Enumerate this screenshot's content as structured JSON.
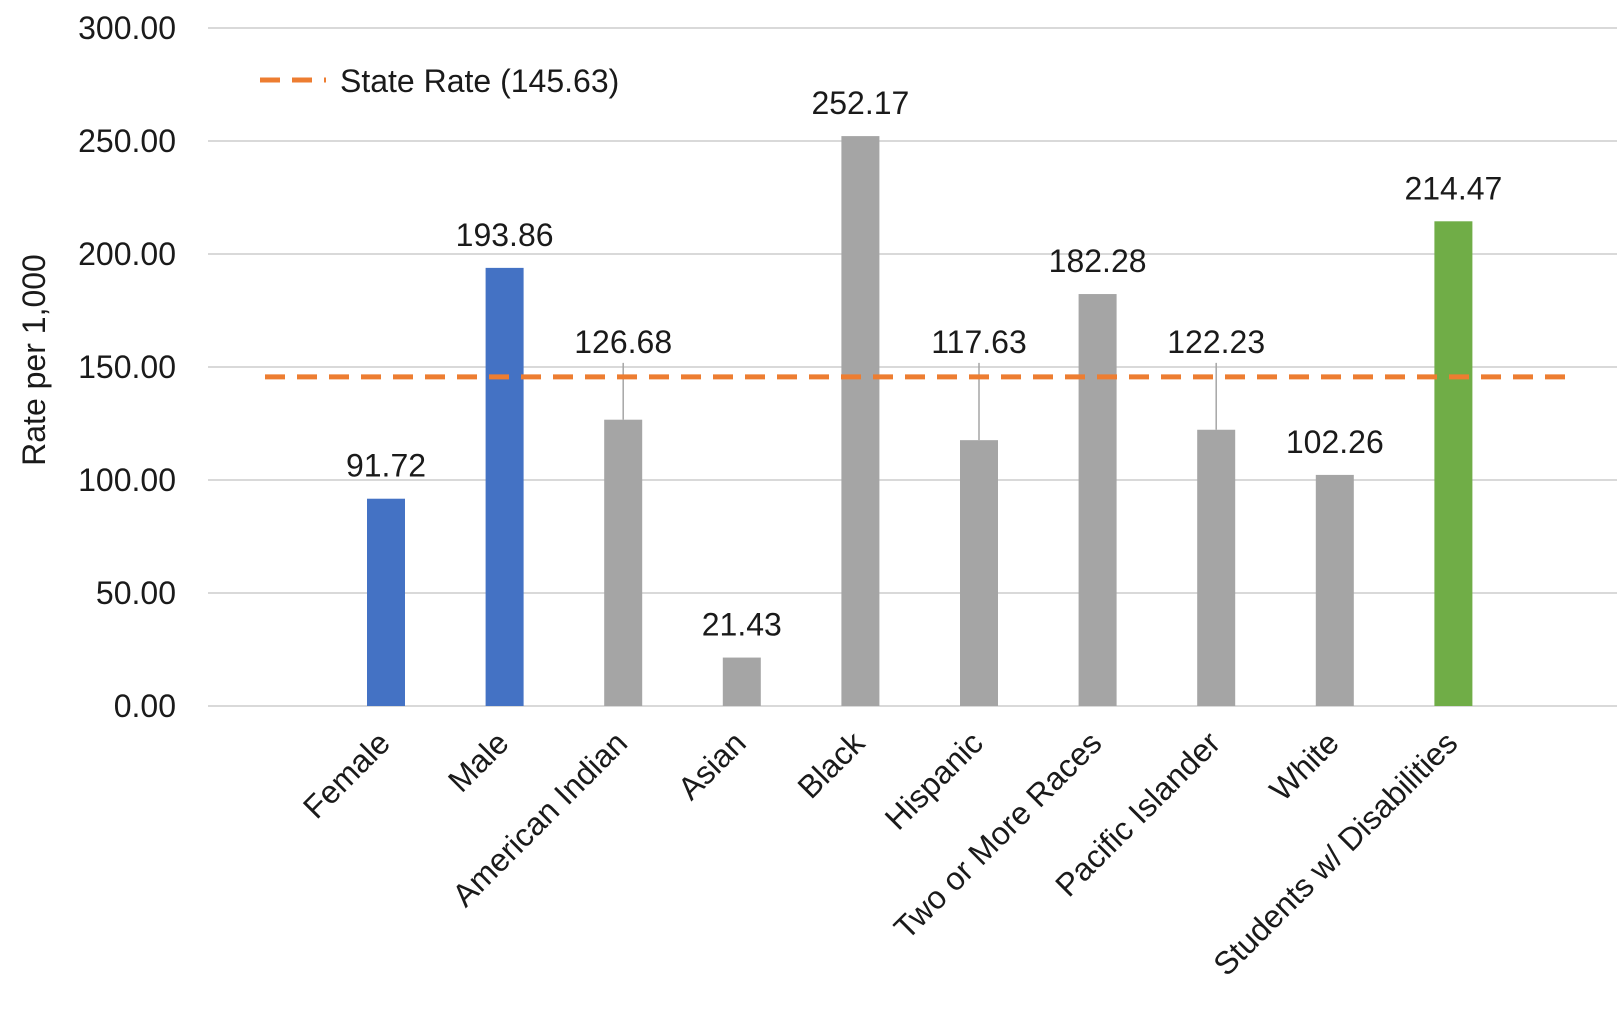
{
  "chart_data": {
    "type": "bar",
    "title": "",
    "xlabel": "",
    "ylabel": "Rate per 1,000",
    "ylim": [
      0,
      300
    ],
    "y_ticks": [
      "0.00",
      "50.00",
      "100.00",
      "150.00",
      "200.00",
      "250.00",
      "300.00"
    ],
    "grid": true,
    "legend_position": "top-left",
    "categories": [
      "Female",
      "Male",
      "American Indian",
      "Asian",
      "Black",
      "Hispanic",
      "Two or More Races",
      "Pacific Islander",
      "White",
      "Students w/ Disabilities"
    ],
    "values": [
      91.72,
      193.86,
      126.68,
      21.43,
      252.17,
      117.63,
      182.28,
      122.23,
      102.26,
      214.47
    ],
    "value_labels": [
      "91.72",
      "193.86",
      "126.68",
      "21.43",
      "252.17",
      "117.63",
      "182.28",
      "122.23",
      "102.26",
      "214.47"
    ],
    "bar_colors": [
      "#4472C4",
      "#4472C4",
      "#A5A5A5",
      "#A5A5A5",
      "#A5A5A5",
      "#A5A5A5",
      "#A5A5A5",
      "#A5A5A5",
      "#A5A5A5",
      "#70AD47"
    ],
    "reference_line": {
      "name": "State Rate (145.63)",
      "value": 145.63,
      "color": "#ED7D31",
      "style": "dashed"
    },
    "gridline_color": "#D9D9D9"
  }
}
